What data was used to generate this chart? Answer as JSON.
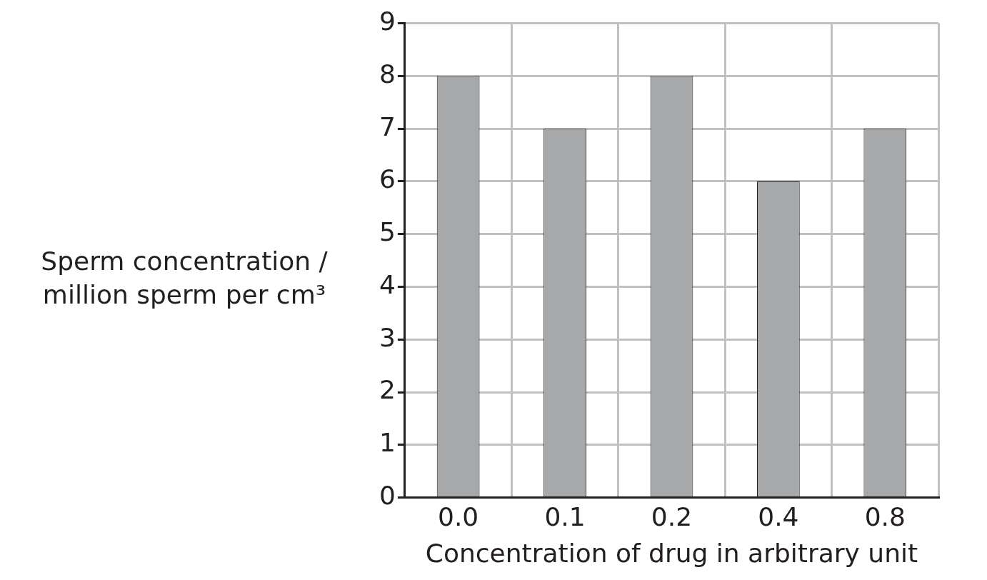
{
  "chart_data": {
    "type": "bar",
    "xlabel": "Concentration of drug in arbitrary unit",
    "ylabel": "Sperm concentration / million sperm per cm³",
    "categories": [
      "0.0",
      "0.1",
      "0.2",
      "0.4",
      "0.8"
    ],
    "values": [
      8,
      7,
      8,
      6,
      7
    ],
    "color": "#a7a8aa",
    "ylim": [
      0,
      9
    ],
    "yticks": [
      0,
      1,
      2,
      3,
      4,
      5,
      6,
      7,
      8,
      9
    ],
    "grid": true,
    "legend": false
  }
}
